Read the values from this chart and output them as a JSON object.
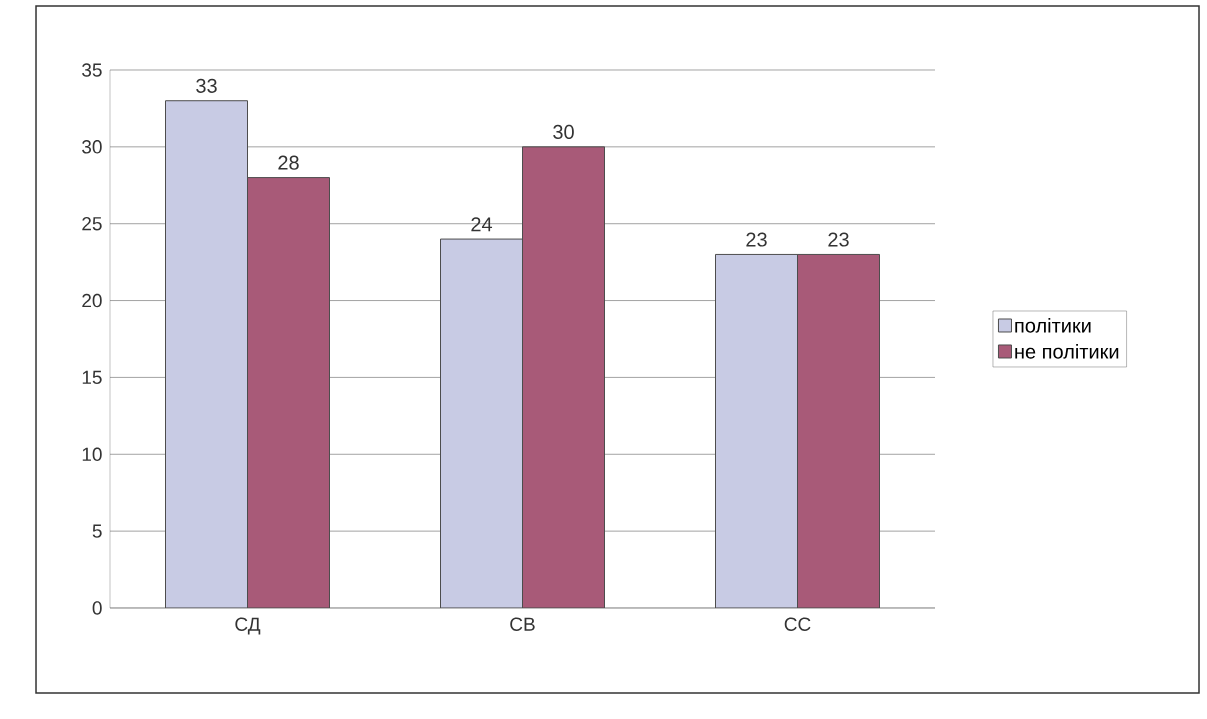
{
  "chart_data": {
    "type": "bar",
    "categories": [
      "СД",
      "СВ",
      "СС"
    ],
    "series": [
      {
        "name": "політики",
        "color": "#c8cbe4",
        "values": [
          33,
          24,
          23
        ]
      },
      {
        "name": "не політики",
        "color": "#a85a78",
        "values": [
          28,
          30,
          23
        ]
      }
    ],
    "ylim": [
      0,
      35
    ],
    "yticks": [
      0,
      5,
      10,
      15,
      20,
      25,
      30,
      35
    ],
    "grid": "y",
    "legend": "right",
    "data_labels": true
  }
}
